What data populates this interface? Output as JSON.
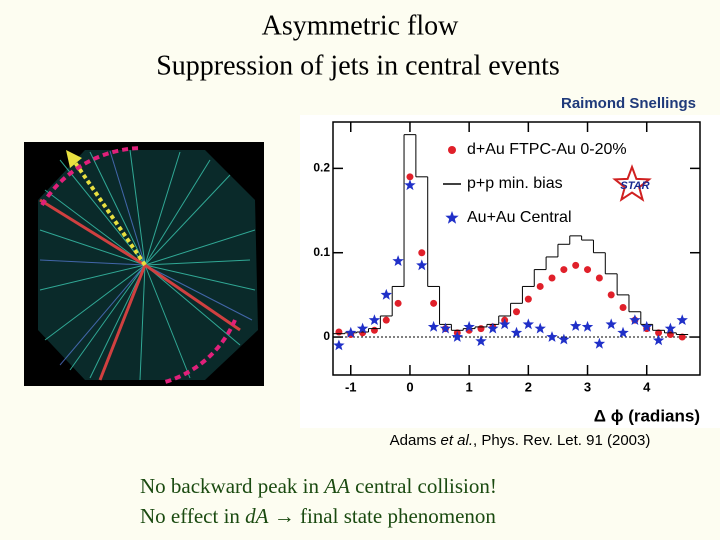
{
  "title": [
    "Asymmetric flow",
    "Suppression of jets in central events"
  ],
  "author": "Raimond Snellings",
  "chart_data": {
    "type": "scatter",
    "xlabel": "Δ ϕ (radians)",
    "xlim": [
      -1.3,
      4.9
    ],
    "ylim": [
      -0.045,
      0.255
    ],
    "xticks": [
      -1,
      0,
      1,
      2,
      3,
      4
    ],
    "yticks": [
      0,
      0.1,
      0.2
    ],
    "logo": "STAR",
    "x": [
      -1.2,
      -1.0,
      -0.8,
      -0.6,
      -0.4,
      -0.2,
      0,
      0.2,
      0.4,
      0.6,
      0.8,
      1.0,
      1.2,
      1.4,
      1.6,
      1.8,
      2.0,
      2.2,
      2.4,
      2.6,
      2.8,
      3.0,
      3.2,
      3.4,
      3.6,
      3.8,
      4.0,
      4.2,
      4.4,
      4.6
    ],
    "series": [
      {
        "name": "d+Au FTPC-Au 0-20%",
        "color": "#e0202a",
        "marker": "circle",
        "values": [
          0.006,
          0.003,
          0.005,
          0.008,
          0.02,
          0.04,
          0.19,
          0.1,
          0.04,
          0.01,
          0.005,
          0.008,
          0.01,
          0.012,
          0.02,
          0.03,
          0.045,
          0.06,
          0.07,
          0.08,
          0.085,
          0.08,
          0.07,
          0.05,
          0.035,
          0.02,
          0.01,
          0.005,
          0.003,
          0.0
        ]
      },
      {
        "name": "p+p min. bias",
        "color": "#000000",
        "marker": "step",
        "values": [
          0.004,
          0.005,
          0.006,
          0.01,
          0.025,
          0.06,
          0.24,
          0.19,
          0.06,
          0.015,
          0.008,
          0.01,
          0.012,
          0.015,
          0.025,
          0.04,
          0.06,
          0.08,
          0.095,
          0.11,
          0.12,
          0.115,
          0.1,
          0.075,
          0.05,
          0.03,
          0.015,
          0.008,
          0.005,
          0.003
        ]
      },
      {
        "name": "Au+Au Central",
        "color": "#2030c8",
        "marker": "star",
        "values": [
          -0.01,
          0.005,
          0.01,
          0.02,
          0.05,
          0.09,
          0.18,
          0.085,
          0.012,
          0.01,
          0.0,
          0.012,
          -0.005,
          0.01,
          0.015,
          0.005,
          0.015,
          0.01,
          0.0,
          -0.003,
          0.013,
          0.012,
          -0.008,
          0.015,
          0.005,
          0.02,
          0.012,
          -0.004,
          0.01,
          0.02
        ]
      }
    ]
  },
  "citation": [
    "Adams ",
    "et al.",
    ", Phys. Rev. Let. 91 (2003)"
  ],
  "notes": [
    [
      "No backward peak in ",
      "AA",
      " central collision!"
    ],
    [
      "No effect in ",
      "dA",
      " → final state phenomenon"
    ]
  ]
}
